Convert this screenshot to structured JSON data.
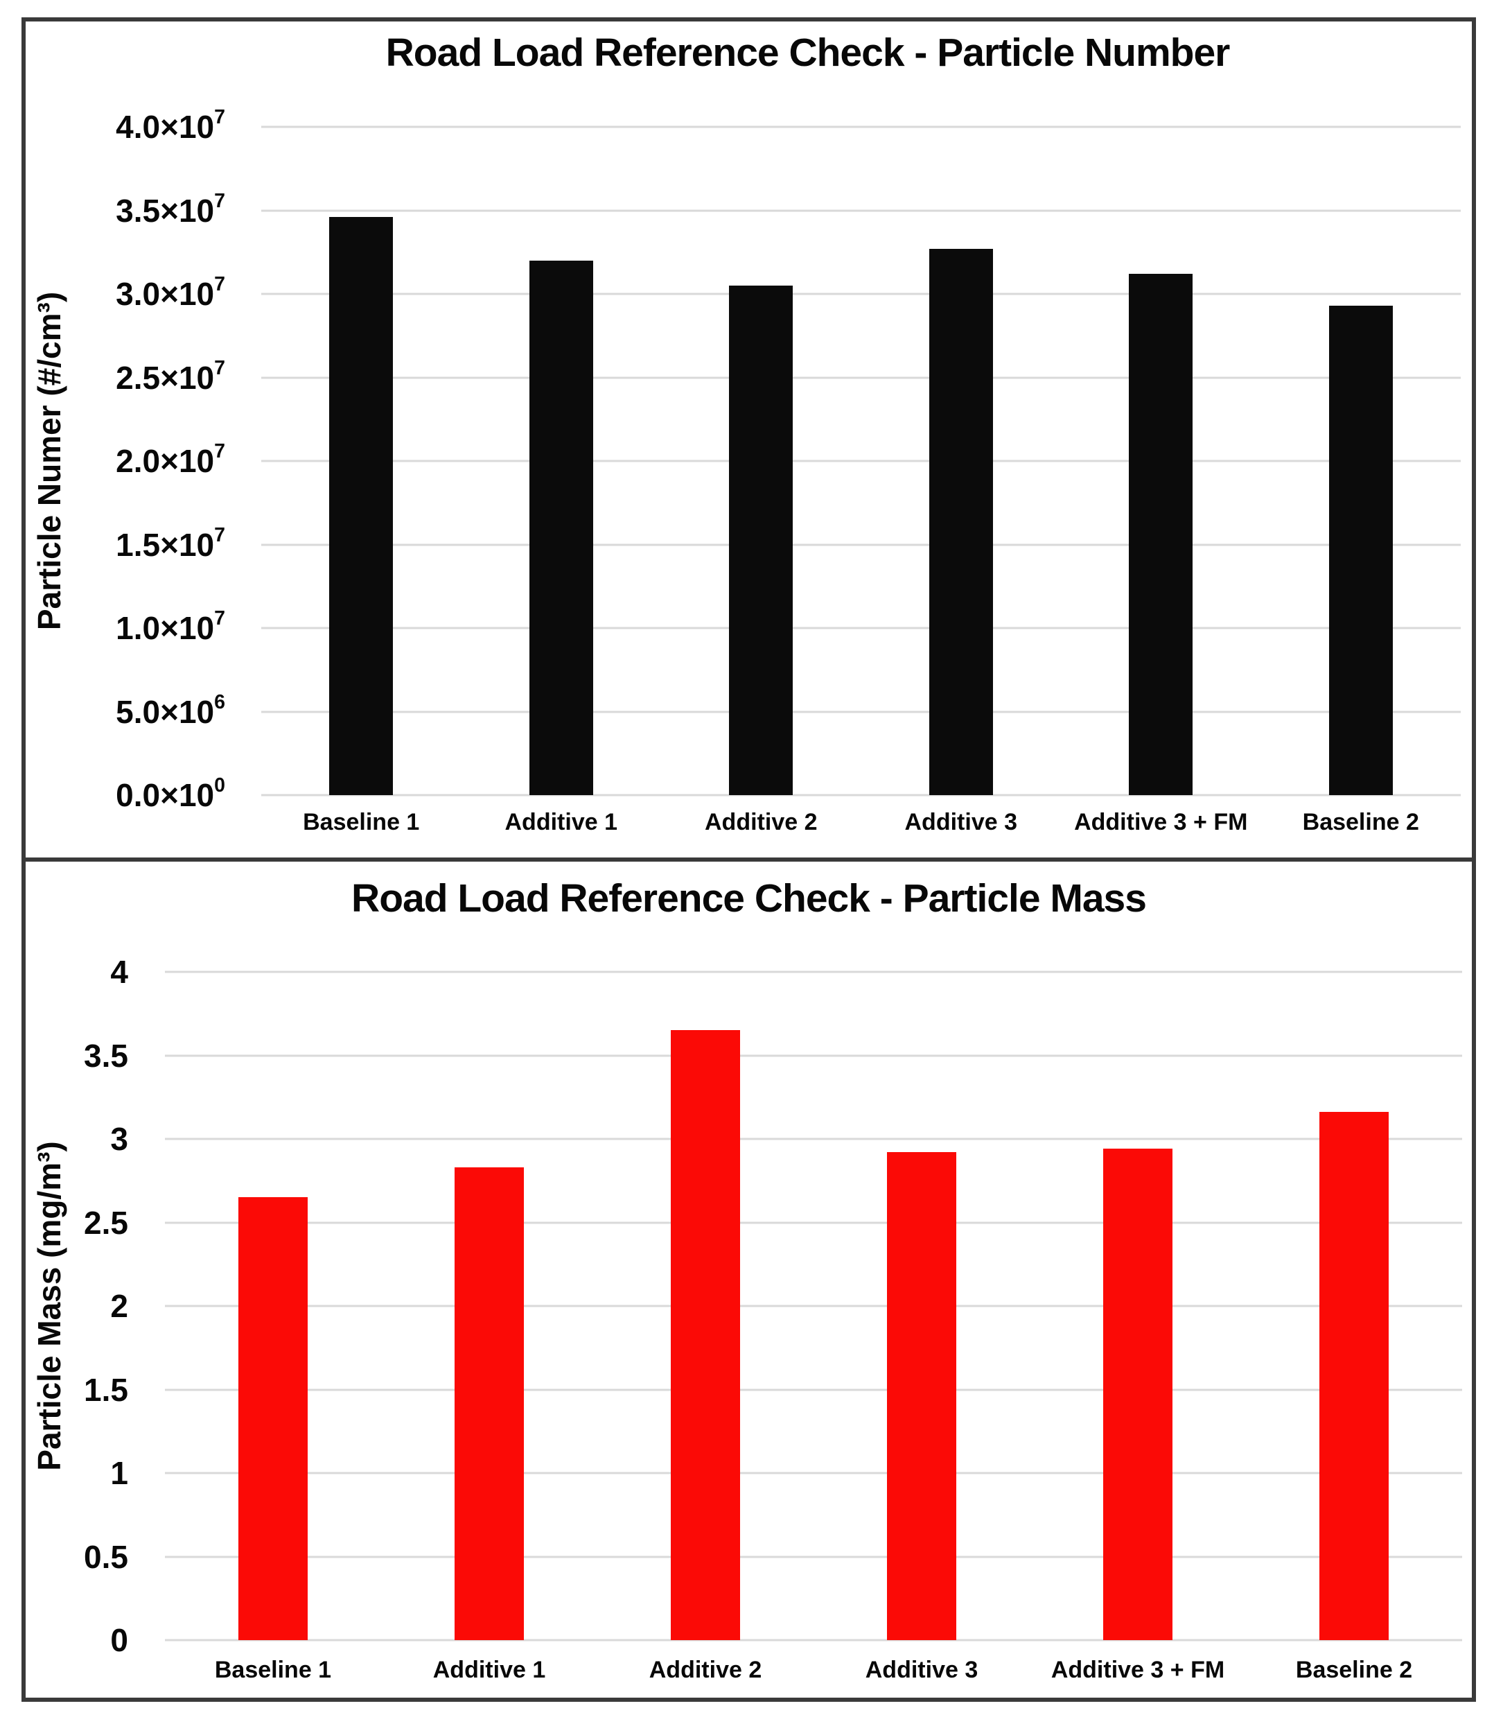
{
  "figure": {
    "background": "#ffffff",
    "frame_color": "#3a3a3a",
    "gridline_color": "#d9d9d9"
  },
  "chart_data": [
    {
      "type": "bar",
      "title": "Road Load Reference Check - Particle Number",
      "ylabel": "Particle Numer (#/cm³)",
      "xlabel": "",
      "categories": [
        "Baseline 1",
        "Additive 1",
        "Additive 2",
        "Additive 3",
        "Additive 3 + FM",
        "Baseline 2"
      ],
      "values": [
        34600000,
        32000000,
        30500000,
        32700000,
        31200000,
        29300000
      ],
      "ylim": [
        0,
        40000000
      ],
      "ytick_interval": 5000000,
      "yticks_top_to_bottom": [
        {
          "base": "4.0×10",
          "sup": "7"
        },
        {
          "base": "3.5×10",
          "sup": "7"
        },
        {
          "base": "3.0×10",
          "sup": "7"
        },
        {
          "base": "2.5×10",
          "sup": "7"
        },
        {
          "base": "2.0×10",
          "sup": "7"
        },
        {
          "base": "1.5×10",
          "sup": "7"
        },
        {
          "base": "1.0×10",
          "sup": "7"
        },
        {
          "base": "5.0×10",
          "sup": "6"
        },
        {
          "base": "0.0×10",
          "sup": "0"
        }
      ],
      "bar_color": "#0b0b0b",
      "grid": true,
      "legend": "none"
    },
    {
      "type": "bar",
      "title": "Road Load Reference Check - Particle Mass",
      "ylabel": "Particle Mass (mg/m³)",
      "xlabel": "",
      "categories": [
        "Baseline 1",
        "Additive 1",
        "Additive 2",
        "Additive 3",
        "Additive 3 + FM",
        "Baseline 2"
      ],
      "values": [
        2.65,
        2.83,
        3.65,
        2.92,
        2.94,
        3.16
      ],
      "ylim": [
        0,
        4
      ],
      "ytick_interval": 0.5,
      "yticks_top_to_bottom": [
        {
          "base": "4"
        },
        {
          "base": "3.5"
        },
        {
          "base": "3"
        },
        {
          "base": "2.5"
        },
        {
          "base": "2"
        },
        {
          "base": "1.5"
        },
        {
          "base": "1"
        },
        {
          "base": "0.5"
        },
        {
          "base": "0"
        }
      ],
      "bar_color": "#fb0a06",
      "grid": true,
      "legend": "none"
    }
  ]
}
